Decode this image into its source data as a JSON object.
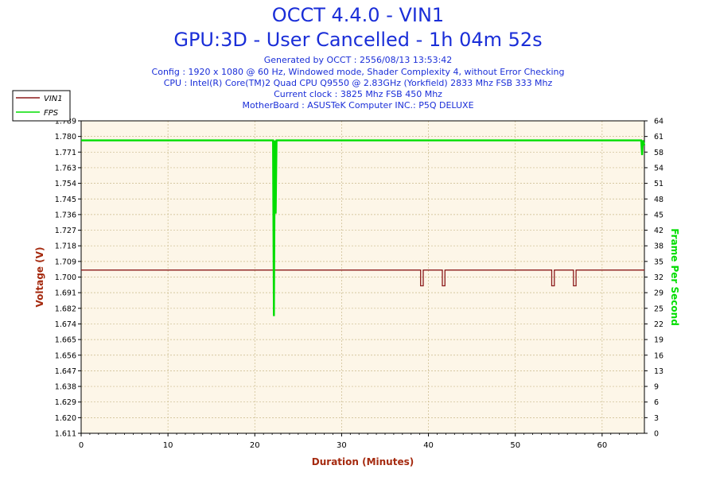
{
  "header": {
    "title": "OCCT 4.4.0 - VIN1",
    "subtitle": "GPU:3D - User Cancelled - 1h 04m 52s",
    "info_lines": [
      "Generated by OCCT : 2556/08/13 13:53:42",
      "Config : 1920 x 1080 @ 60 Hz, Windowed mode, Shader Complexity 4, without Error Checking",
      "CPU : Intel(R) Core(TM)2 Quad CPU Q9550 @ 2.83GHz (Yorkfield) 2833 Mhz FSB 333 Mhz",
      "Current clock : 3825 Mhz FSB 450 Mhz",
      "MotherBoard : ASUSTeK Computer INC.: P5Q DELUXE"
    ]
  },
  "colors": {
    "title": "#1a2ed8",
    "vin1": "#8b1a1a",
    "fps": "#00dd00",
    "plot_bg": "#fdf6e8",
    "grid": "#c9b98a"
  },
  "chart_data": {
    "type": "line",
    "xlabel": "Duration (Minutes)",
    "ylabel": "Voltage (V)",
    "y2label": "Frame Per Second",
    "xlim": [
      0,
      64.87
    ],
    "ylim": [
      1.611,
      1.789
    ],
    "y2lim": [
      0,
      64
    ],
    "x_ticks": [
      0,
      10,
      20,
      30,
      40,
      50,
      60
    ],
    "y_ticks": [
      "1.611",
      "1.620",
      "1.629",
      "1.638",
      "1.647",
      "1.656",
      "1.665",
      "1.674",
      "1.682",
      "1.691",
      "1.700",
      "1.709",
      "1.718",
      "1.727",
      "1.736",
      "1.745",
      "1.754",
      "1.763",
      "1.771",
      "1.780",
      "1.789"
    ],
    "y2_ticks": [
      0,
      3,
      6,
      9,
      13,
      16,
      19,
      22,
      25,
      29,
      32,
      35,
      38,
      42,
      45,
      48,
      51,
      54,
      58,
      61,
      64
    ],
    "legend_position": "top-left",
    "series": [
      {
        "name": "VIN1",
        "axis": "left",
        "x": [
          0,
          39.1,
          39.1,
          39.4,
          39.4,
          41.6,
          41.6,
          41.9,
          41.9,
          54.2,
          54.2,
          54.5,
          54.5,
          56.7,
          56.7,
          57.0,
          57.0,
          64.87
        ],
        "y": [
          1.704,
          1.704,
          1.695,
          1.695,
          1.704,
          1.704,
          1.695,
          1.695,
          1.704,
          1.704,
          1.695,
          1.695,
          1.704,
          1.704,
          1.695,
          1.695,
          1.704,
          1.704
        ]
      },
      {
        "name": "FPS",
        "axis": "right",
        "x": [
          0,
          22.1,
          22.2,
          22.3,
          22.4,
          22.5,
          64.5,
          64.6,
          64.7,
          64.87
        ],
        "y": [
          60,
          60,
          24,
          60,
          45,
          60,
          60,
          57,
          60,
          59
        ]
      }
    ]
  }
}
